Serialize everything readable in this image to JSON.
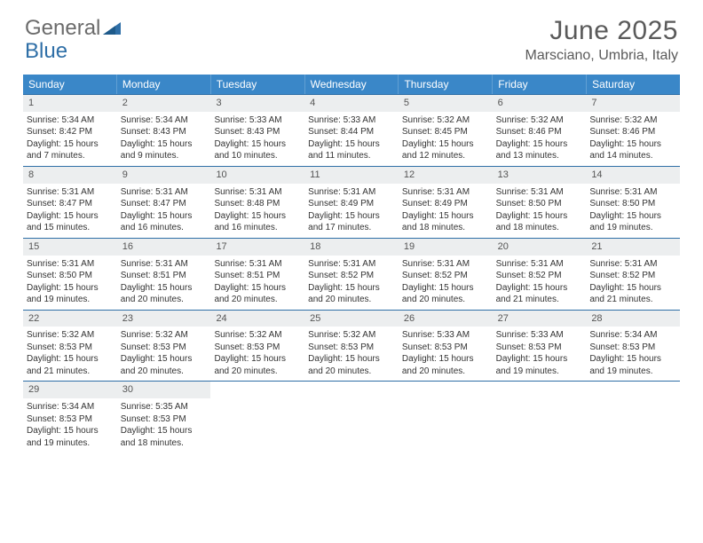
{
  "logo": {
    "text1": "General",
    "text2": "Blue"
  },
  "title": "June 2025",
  "location": "Marsciano, Umbria, Italy",
  "colors": {
    "header_bar": "#3a87c8",
    "border": "#2f6fa7",
    "daynum_bg": "#eceeef",
    "text": "#333333"
  },
  "weekdays": [
    "Sunday",
    "Monday",
    "Tuesday",
    "Wednesday",
    "Thursday",
    "Friday",
    "Saturday"
  ],
  "weeks": [
    [
      {
        "n": "1",
        "sr": "5:34 AM",
        "ss": "8:42 PM",
        "dh": "15",
        "dm": "7"
      },
      {
        "n": "2",
        "sr": "5:34 AM",
        "ss": "8:43 PM",
        "dh": "15",
        "dm": "9"
      },
      {
        "n": "3",
        "sr": "5:33 AM",
        "ss": "8:43 PM",
        "dh": "15",
        "dm": "10"
      },
      {
        "n": "4",
        "sr": "5:33 AM",
        "ss": "8:44 PM",
        "dh": "15",
        "dm": "11"
      },
      {
        "n": "5",
        "sr": "5:32 AM",
        "ss": "8:45 PM",
        "dh": "15",
        "dm": "12"
      },
      {
        "n": "6",
        "sr": "5:32 AM",
        "ss": "8:46 PM",
        "dh": "15",
        "dm": "13"
      },
      {
        "n": "7",
        "sr": "5:32 AM",
        "ss": "8:46 PM",
        "dh": "15",
        "dm": "14"
      }
    ],
    [
      {
        "n": "8",
        "sr": "5:31 AM",
        "ss": "8:47 PM",
        "dh": "15",
        "dm": "15"
      },
      {
        "n": "9",
        "sr": "5:31 AM",
        "ss": "8:47 PM",
        "dh": "15",
        "dm": "16"
      },
      {
        "n": "10",
        "sr": "5:31 AM",
        "ss": "8:48 PM",
        "dh": "15",
        "dm": "16"
      },
      {
        "n": "11",
        "sr": "5:31 AM",
        "ss": "8:49 PM",
        "dh": "15",
        "dm": "17"
      },
      {
        "n": "12",
        "sr": "5:31 AM",
        "ss": "8:49 PM",
        "dh": "15",
        "dm": "18"
      },
      {
        "n": "13",
        "sr": "5:31 AM",
        "ss": "8:50 PM",
        "dh": "15",
        "dm": "18"
      },
      {
        "n": "14",
        "sr": "5:31 AM",
        "ss": "8:50 PM",
        "dh": "15",
        "dm": "19"
      }
    ],
    [
      {
        "n": "15",
        "sr": "5:31 AM",
        "ss": "8:50 PM",
        "dh": "15",
        "dm": "19"
      },
      {
        "n": "16",
        "sr": "5:31 AM",
        "ss": "8:51 PM",
        "dh": "15",
        "dm": "20"
      },
      {
        "n": "17",
        "sr": "5:31 AM",
        "ss": "8:51 PM",
        "dh": "15",
        "dm": "20"
      },
      {
        "n": "18",
        "sr": "5:31 AM",
        "ss": "8:52 PM",
        "dh": "15",
        "dm": "20"
      },
      {
        "n": "19",
        "sr": "5:31 AM",
        "ss": "8:52 PM",
        "dh": "15",
        "dm": "20"
      },
      {
        "n": "20",
        "sr": "5:31 AM",
        "ss": "8:52 PM",
        "dh": "15",
        "dm": "21"
      },
      {
        "n": "21",
        "sr": "5:31 AM",
        "ss": "8:52 PM",
        "dh": "15",
        "dm": "21"
      }
    ],
    [
      {
        "n": "22",
        "sr": "5:32 AM",
        "ss": "8:53 PM",
        "dh": "15",
        "dm": "21"
      },
      {
        "n": "23",
        "sr": "5:32 AM",
        "ss": "8:53 PM",
        "dh": "15",
        "dm": "20"
      },
      {
        "n": "24",
        "sr": "5:32 AM",
        "ss": "8:53 PM",
        "dh": "15",
        "dm": "20"
      },
      {
        "n": "25",
        "sr": "5:32 AM",
        "ss": "8:53 PM",
        "dh": "15",
        "dm": "20"
      },
      {
        "n": "26",
        "sr": "5:33 AM",
        "ss": "8:53 PM",
        "dh": "15",
        "dm": "20"
      },
      {
        "n": "27",
        "sr": "5:33 AM",
        "ss": "8:53 PM",
        "dh": "15",
        "dm": "19"
      },
      {
        "n": "28",
        "sr": "5:34 AM",
        "ss": "8:53 PM",
        "dh": "15",
        "dm": "19"
      }
    ],
    [
      {
        "n": "29",
        "sr": "5:34 AM",
        "ss": "8:53 PM",
        "dh": "15",
        "dm": "19"
      },
      {
        "n": "30",
        "sr": "5:35 AM",
        "ss": "8:53 PM",
        "dh": "15",
        "dm": "18"
      },
      null,
      null,
      null,
      null,
      null
    ]
  ],
  "labels": {
    "sunrise": "Sunrise: ",
    "sunset": "Sunset: ",
    "daylight_prefix": "Daylight: ",
    "hours": " hours",
    "and": "and ",
    "minutes": " minutes."
  }
}
